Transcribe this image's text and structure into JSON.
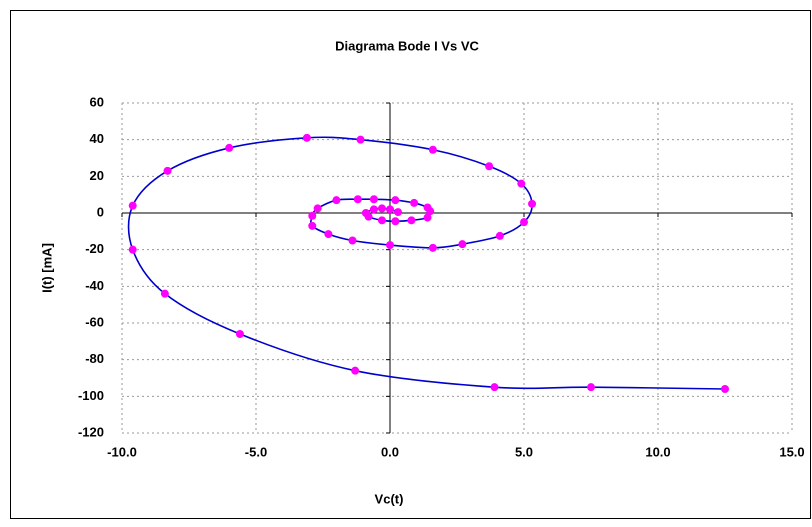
{
  "chart_data": {
    "type": "scatter",
    "title": "Diagrama Bode I Vs VC",
    "x_label": "Vc(t)",
    "y_label": "I(t) [mA]",
    "x": [
      12.5,
      7.5,
      3.9,
      -1.3,
      -5.6,
      -8.4,
      -9.6,
      -9.6,
      -8.3,
      -6.0,
      -3.1,
      -1.1,
      1.6,
      3.7,
      4.9,
      5.3,
      5.0,
      4.1,
      2.7,
      1.6,
      0.0,
      -1.4,
      -2.3,
      -2.9,
      -2.9,
      -2.7,
      -2.0,
      -1.2,
      -0.6,
      0.2,
      0.9,
      1.4,
      1.5,
      1.4,
      0.8,
      0.2,
      -0.3,
      -0.8,
      -0.9,
      -0.6,
      -0.3,
      0.0,
      0.3
    ],
    "values": [
      -96,
      -95,
      -95,
      -86,
      -66,
      -44,
      -20,
      4,
      23,
      35.5,
      41,
      40,
      34.5,
      25.5,
      16,
      5,
      -5,
      -12.5,
      -17,
      -19,
      -17.5,
      -15,
      -11.5,
      -7,
      -1.5,
      2.5,
      7,
      7.5,
      7.5,
      7,
      5.5,
      3,
      1,
      -2.5,
      -4,
      -4.5,
      -4,
      -2,
      0,
      2,
      2.5,
      2,
      0.5
    ],
    "line_color": "#0000cc",
    "marker_color": "#ff00ff",
    "xlim": [
      -10,
      15
    ],
    "xticks": [
      {
        "value": -10,
        "label": "-10.0"
      },
      {
        "value": -5,
        "label": "-5.0"
      },
      {
        "value": 0,
        "label": "0.0"
      },
      {
        "value": 5,
        "label": "5.0"
      },
      {
        "value": 10,
        "label": "10.0"
      },
      {
        "value": 15,
        "label": "15.0"
      }
    ],
    "ylim": [
      -120,
      60
    ],
    "yticks": [
      -120,
      -100,
      -80,
      -60,
      -40,
      -20,
      0,
      20,
      40,
      60
    ],
    "grid": true
  }
}
